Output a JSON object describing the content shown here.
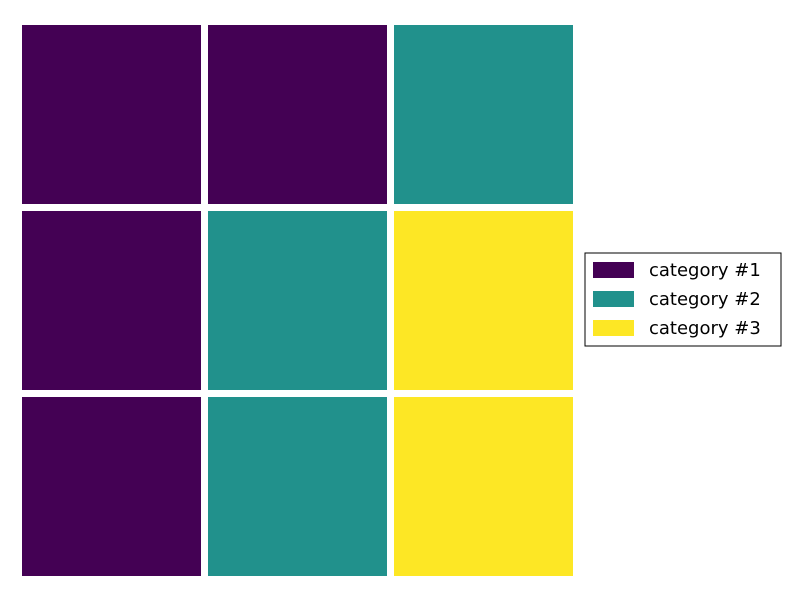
{
  "chart_data": {
    "type": "heatmap",
    "title": "",
    "xlabel": "",
    "ylabel": "",
    "grid": false,
    "legend_placement": "center-right",
    "categories": [
      {
        "label": "category #1",
        "value": 1,
        "color": "#440154"
      },
      {
        "label": "category #2",
        "value": 2,
        "color": "#21918c"
      },
      {
        "label": "category #3",
        "value": 3,
        "color": "#fde725"
      }
    ],
    "values": [
      [
        1,
        1,
        2
      ],
      [
        1,
        2,
        3
      ],
      [
        1,
        2,
        3
      ]
    ]
  }
}
